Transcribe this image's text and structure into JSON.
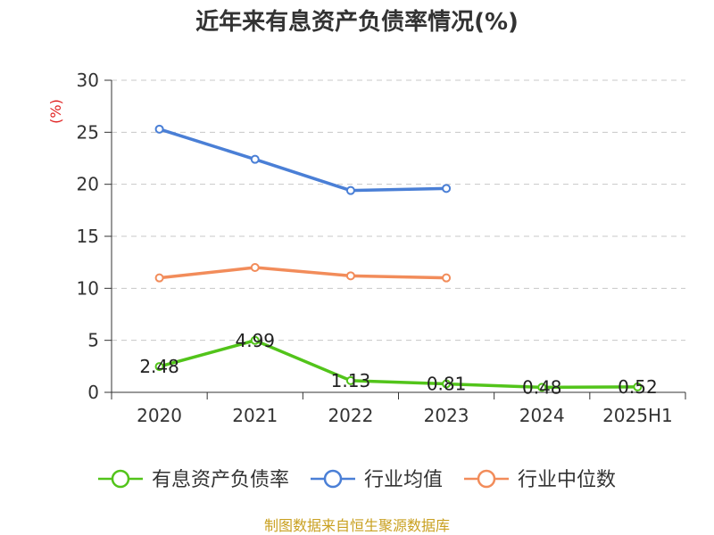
{
  "chart_data": {
    "type": "line",
    "title": "近年来有息资产负债率情况(%)",
    "ylabel": "(%)",
    "xlabel": "",
    "categories": [
      "2020",
      "2021",
      "2022",
      "2023",
      "2024",
      "2025H1"
    ],
    "ylim": [
      0,
      30
    ],
    "yticks": [
      0,
      5,
      10,
      15,
      20,
      25,
      30
    ],
    "grid": true,
    "legend_position": "bottom",
    "series": [
      {
        "name": "有息资产负债率",
        "color": "#52c41a",
        "values": [
          2.48,
          4.99,
          1.13,
          0.81,
          0.48,
          0.52
        ],
        "labels": [
          "2.48",
          "4.99",
          "1.13",
          "0.81",
          "0.48",
          "0.52"
        ]
      },
      {
        "name": "行业均值",
        "color": "#4a7fd6",
        "values": [
          25.3,
          22.4,
          19.4,
          19.6,
          null,
          null
        ]
      },
      {
        "name": "行业中位数",
        "color": "#f28c5a",
        "values": [
          11.0,
          12.0,
          11.2,
          11.0,
          null,
          null
        ]
      }
    ]
  },
  "source": "制图数据来自恒生聚源数据库"
}
